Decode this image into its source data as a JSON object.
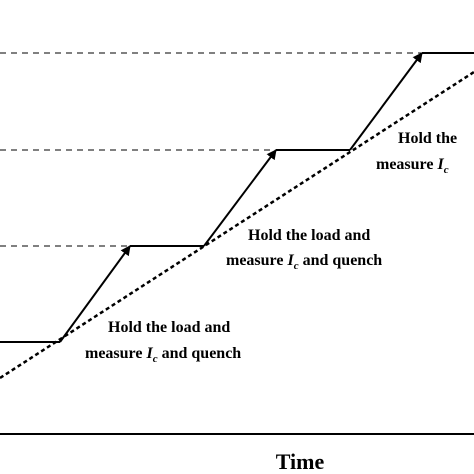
{
  "x_axis_title": "Time",
  "annotations": [
    {
      "line1": "Hold the load and",
      "line2_pre": "measure ",
      "symbol": "I",
      "subscript": "c",
      "line2_post": " and quench"
    },
    {
      "line1": "Hold the load and",
      "line2_pre": "measure ",
      "symbol": "I",
      "subscript": "c",
      "line2_post": " and quench"
    },
    {
      "line1": "Hold the",
      "line2_pre": "measure ",
      "symbol": "I",
      "subscript": "c",
      "line2_post": ""
    }
  ]
}
